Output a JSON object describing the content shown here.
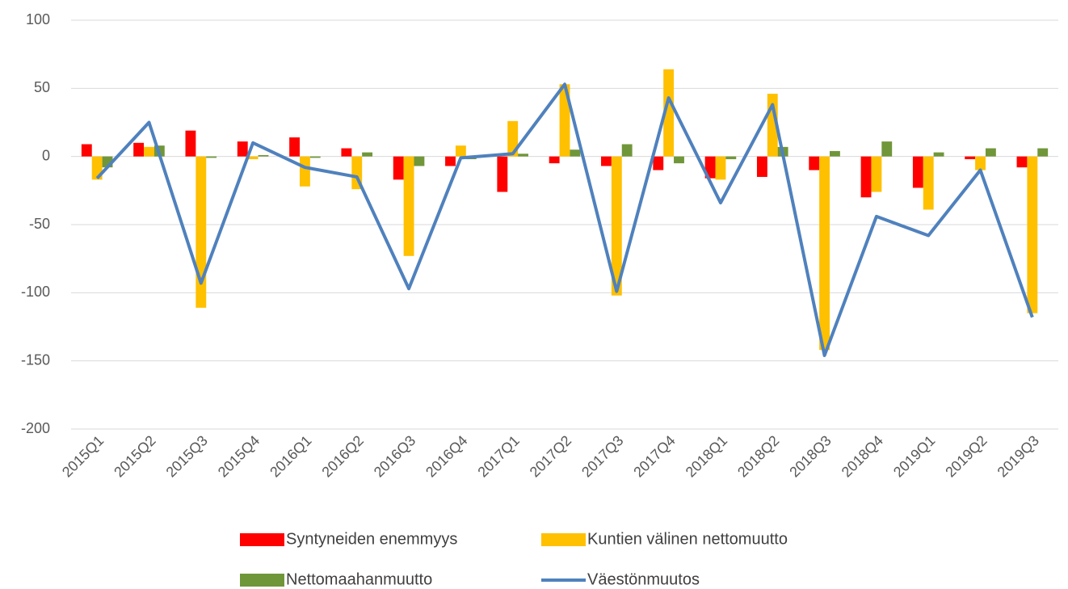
{
  "chart_data": {
    "type": "combo",
    "categories": [
      "2015Q1",
      "2015Q2",
      "2015Q3",
      "2015Q4",
      "2016Q1",
      "2016Q2",
      "2016Q3",
      "2016Q4",
      "2017Q1",
      "2017Q2",
      "2017Q3",
      "2017Q4",
      "2018Q1",
      "2018Q2",
      "2018Q3",
      "2018Q4",
      "2019Q1",
      "2019Q2",
      "2019Q3"
    ],
    "series": [
      {
        "name": "Syntyneiden enemmyys",
        "type": "bar",
        "color": "#ff0000",
        "values": [
          9,
          10,
          19,
          11,
          14,
          6,
          -17,
          -7,
          -26,
          -5,
          -7,
          -10,
          -16,
          -15,
          -10,
          -30,
          -23,
          -2,
          -8
        ]
      },
      {
        "name": "Kuntien välinen nettomuutto",
        "type": "bar",
        "color": "#ffc000",
        "values": [
          -17,
          7,
          -111,
          -2,
          -22,
          -24,
          -73,
          8,
          26,
          53,
          -102,
          64,
          -17,
          46,
          -142,
          -26,
          -39,
          -10,
          -115
        ]
      },
      {
        "name": "Nettomaahanmuutto",
        "type": "bar",
        "color": "#70963a",
        "values": [
          -8,
          8,
          -1,
          1,
          -1,
          3,
          -7,
          -2,
          2,
          5,
          9,
          -5,
          -2,
          7,
          4,
          11,
          3,
          6,
          6
        ]
      },
      {
        "name": "Väestönmuutos",
        "type": "line",
        "color": "#4f81bd",
        "values": [
          -16,
          25,
          -93,
          10,
          -8,
          -15,
          -97,
          -1,
          2,
          53,
          -99,
          43,
          -34,
          38,
          -146,
          -44,
          -58,
          -10,
          -118
        ]
      }
    ],
    "ylim": [
      -200,
      100
    ],
    "yticks": [
      -200,
      -150,
      -100,
      -50,
      0,
      50,
      100
    ],
    "grid": true,
    "legend": "bottom"
  }
}
